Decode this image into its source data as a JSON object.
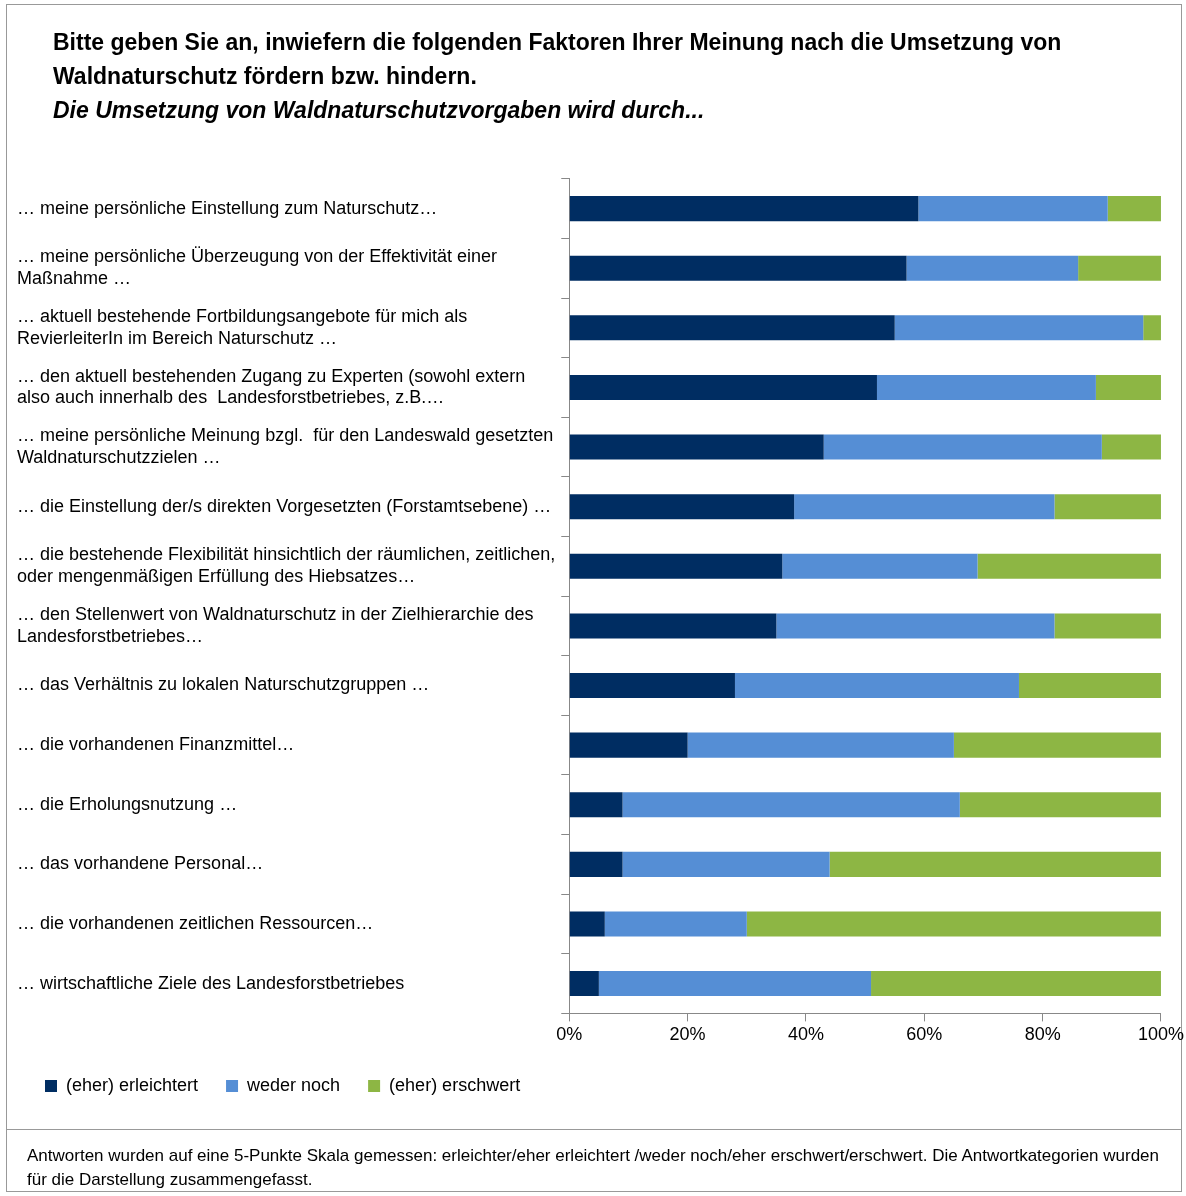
{
  "chart_data": {
    "type": "bar",
    "orientation": "horizontal",
    "stacked": true,
    "title": "Bitte geben Sie an, inwiefern die folgenden Faktoren Ihrer Meinung nach die Umsetzung von Waldnaturschutz fördern bzw. hindern.",
    "subtitle": "Die Umsetzung von Waldnaturschutzvorgaben wird durch...",
    "categories": [
      "… meine persönliche Einstellung zum Naturschutz…",
      "… meine persönliche Überzeugung von der Effektivität einer Maßnahme …",
      "… aktuell bestehende Fortbildungsangebote für mich als RevierleiterIn im Bereich Naturschutz …",
      "… den aktuell bestehenden Zugang zu Experten (sowohl extern also auch innerhalb des  Landesforstbetriebes, z.B.…",
      "… meine persönliche Meinung bzgl.  für den Landeswald gesetzten Waldnaturschutzzielen …",
      "… die Einstellung der/s direkten Vorgesetzten (Forstamtsebene) …",
      "… die bestehende Flexibilität hinsichtlich der räumlichen, zeitlichen, oder mengenmäßigen Erfüllung des Hiebsatzes…",
      "… den Stellenwert von Waldnaturschutz in der Zielhierarchie des Landesforstbetriebes…",
      "… das Verhältnis zu lokalen Naturschutzgruppen …",
      "… die vorhandenen Finanzmittel…",
      "… die Erholungsnutzung …",
      "… das vorhandene Personal…",
      "… die vorhandenen zeitlichen Ressourcen…",
      "… wirtschaftliche Ziele des Landesforstbetriebes"
    ],
    "series": [
      {
        "name": "(eher) erleichtert",
        "color": "#002d62",
        "values": [
          59,
          57,
          55,
          52,
          43,
          38,
          36,
          35,
          28,
          20,
          9,
          9,
          6,
          5
        ]
      },
      {
        "name": "weder noch",
        "color": "#558ed5",
        "values": [
          32,
          29,
          42,
          37,
          47,
          44,
          33,
          47,
          48,
          45,
          57,
          35,
          24,
          46
        ]
      },
      {
        "name": "(eher) erschwert",
        "color": "#8db644",
        "values": [
          9,
          14,
          3,
          11,
          10,
          18,
          31,
          18,
          24,
          35,
          34,
          56,
          70,
          49
        ]
      }
    ],
    "xlim": [
      0,
      100
    ],
    "xticks": [
      {
        "value": 0,
        "label": "0%"
      },
      {
        "value": 20,
        "label": "20%"
      },
      {
        "value": 40,
        "label": "40%"
      },
      {
        "value": 60,
        "label": "60%"
      },
      {
        "value": 80,
        "label": "80%"
      },
      {
        "value": 100,
        "label": "100%"
      }
    ],
    "grid": false,
    "legend": "bottom left",
    "annotations": [
      "Antworten wurden auf eine 5-Punkte Skala gemessen:  erleichter/eher erleichtert /weder noch/eher erschwert/erschwert. Die Antwortkategorien wurden für die Darstellung zusammengefasst."
    ]
  }
}
